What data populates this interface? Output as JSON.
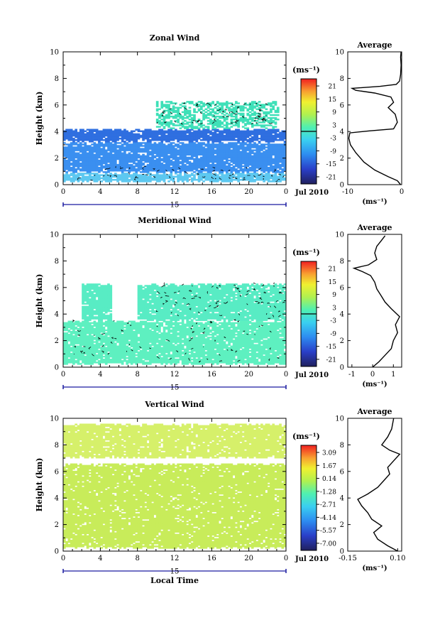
{
  "common": {
    "date_label": "Jul 2010",
    "day_label": "15",
    "xlabel": "Local Time",
    "ylabel": "Height (km)",
    "unit_label": "(ms⁻¹)",
    "average_title": "Average",
    "x_ticks": [
      "0",
      "4",
      "8",
      "12",
      "16",
      "20",
      "0"
    ],
    "y_ticks": [
      "0",
      "2",
      "4",
      "6",
      "8",
      "10"
    ]
  },
  "chart_data": [
    {
      "type": "heatmap",
      "title": "Zonal Wind",
      "xlabel": "",
      "ylabel": "Height (km)",
      "xlim": [
        0,
        24
      ],
      "ylim": [
        0,
        10
      ],
      "date_label": "Jul 2010",
      "colorbar": {
        "unit": "(ms⁻¹)",
        "ticks": [
          "21",
          "15",
          "9",
          "3",
          "-3",
          "-9",
          "-15",
          "-21"
        ],
        "range": [
          -24,
          24
        ],
        "zero_line": true
      },
      "layers": [
        {
          "y": [
            0.2,
            0.9
          ],
          "dominant_value": -12,
          "color": "#5dc8f0"
        },
        {
          "y": [
            0.9,
            3.2
          ],
          "dominant_value": -8,
          "color": "#3a8ff0"
        },
        {
          "y": [
            3.2,
            4.2
          ],
          "dominant_value": -13,
          "color": "#2f6fe0"
        },
        {
          "y": [
            4.2,
            6.3
          ],
          "dominant_value": 2,
          "color": "#3ee0b8"
        }
      ],
      "average_profile": {
        "xlabel": "(ms⁻¹)",
        "xticks": [
          "-10",
          "0"
        ],
        "xlim": [
          -10,
          0
        ],
        "points": [
          [
            -0.2,
            0
          ],
          [
            -0.8,
            0.3
          ],
          [
            -2.5,
            0.6
          ],
          [
            -5,
            1.1
          ],
          [
            -7,
            1.7
          ],
          [
            -8.5,
            2.4
          ],
          [
            -9.5,
            3.0
          ],
          [
            -9.8,
            3.5
          ],
          [
            -9.6,
            3.9
          ],
          [
            -6,
            4.05
          ],
          [
            -1.5,
            4.2
          ],
          [
            -0.8,
            4.7
          ],
          [
            -1.2,
            5.3
          ],
          [
            -2.5,
            5.8
          ],
          [
            -1.5,
            6.2
          ],
          [
            -2,
            6.6
          ],
          [
            -5,
            6.9
          ],
          [
            -8.5,
            7.1
          ],
          [
            -9.2,
            7.25
          ],
          [
            -4,
            7.4
          ],
          [
            -1,
            7.55
          ],
          [
            -0.4,
            7.8
          ],
          [
            -0.2,
            8.3
          ],
          [
            -0.1,
            9.0
          ],
          [
            -0.2,
            9.6
          ],
          [
            -0.1,
            10
          ]
        ]
      }
    },
    {
      "type": "heatmap",
      "title": "Meridional Wind",
      "xlabel": "",
      "ylabel": "Height (km)",
      "xlim": [
        0,
        24
      ],
      "ylim": [
        0,
        10
      ],
      "date_label": "Jul 2010",
      "colorbar": {
        "unit": "(ms⁻¹)",
        "ticks": [
          "21",
          "15",
          "9",
          "3",
          "-3",
          "-9",
          "-15",
          "-21"
        ],
        "range": [
          -24,
          24
        ],
        "zero_line": true
      },
      "layers": [
        {
          "y": [
            0.2,
            3.5
          ],
          "dominant_value": 1,
          "color": "#5ef0c0"
        },
        {
          "y": [
            3.5,
            6.3
          ],
          "dominant_value": 0.5,
          "color": "#58ecc4"
        }
      ],
      "average_profile": {
        "xlabel": "(ms⁻¹)",
        "xticks": [
          "-1",
          "0",
          "1"
        ],
        "xlim": [
          -1.2,
          1.4
        ],
        "points": [
          [
            0,
            0
          ],
          [
            0.3,
            0.4
          ],
          [
            0.6,
            0.9
          ],
          [
            0.9,
            1.4
          ],
          [
            1.0,
            2.0
          ],
          [
            1.2,
            2.6
          ],
          [
            1.1,
            3.2
          ],
          [
            1.3,
            3.8
          ],
          [
            0.9,
            4.4
          ],
          [
            0.6,
            4.9
          ],
          [
            0.4,
            5.4
          ],
          [
            0.2,
            5.9
          ],
          [
            0.1,
            6.4
          ],
          [
            -0.1,
            6.9
          ],
          [
            -0.5,
            7.2
          ],
          [
            -0.9,
            7.45
          ],
          [
            -0.2,
            7.7
          ],
          [
            0.2,
            8.1
          ],
          [
            0.1,
            8.6
          ],
          [
            0.2,
            9.1
          ],
          [
            0.4,
            9.5
          ],
          [
            0.6,
            9.9
          ]
        ]
      }
    },
    {
      "type": "heatmap",
      "title": "Vertical Wind",
      "xlabel": "Local Time",
      "ylabel": "Height (km)",
      "xlim": [
        0,
        24
      ],
      "ylim": [
        0,
        10
      ],
      "date_label": "Jul 2010",
      "colorbar": {
        "unit": "(ms⁻¹)",
        "ticks": [
          "3.09",
          "1.67",
          "0.14",
          "-1.28",
          "-2.71",
          "-4.14",
          "-5.57",
          "-7.00"
        ],
        "range": [
          -7.7,
          3.8
        ],
        "zero_line": false
      },
      "layers": [
        {
          "y": [
            0.2,
            6.6
          ],
          "dominant_value": -0.5,
          "color": "#c8ec5a"
        },
        {
          "y": [
            7.0,
            9.6
          ],
          "dominant_value": -0.3,
          "color": "#d6f06a"
        }
      ],
      "average_profile": {
        "xlabel": "(ms⁻¹)",
        "xticks": [
          "-0.15",
          "0.10"
        ],
        "xlim": [
          -0.15,
          0.12
        ],
        "points": [
          [
            0.1,
            0
          ],
          [
            0.05,
            0.4
          ],
          [
            0.0,
            0.9
          ],
          [
            -0.02,
            1.4
          ],
          [
            0.02,
            1.9
          ],
          [
            -0.03,
            2.4
          ],
          [
            -0.05,
            2.9
          ],
          [
            -0.08,
            3.4
          ],
          [
            -0.1,
            3.9
          ],
          [
            -0.05,
            4.3
          ],
          [
            0.0,
            4.8
          ],
          [
            0.03,
            5.3
          ],
          [
            0.06,
            5.8
          ],
          [
            0.05,
            6.3
          ],
          [
            0.08,
            6.8
          ],
          [
            0.11,
            7.3
          ],
          [
            0.06,
            7.6
          ],
          [
            0.02,
            8.0
          ],
          [
            0.05,
            8.6
          ],
          [
            0.07,
            9.2
          ],
          [
            0.08,
            10
          ]
        ]
      }
    }
  ]
}
